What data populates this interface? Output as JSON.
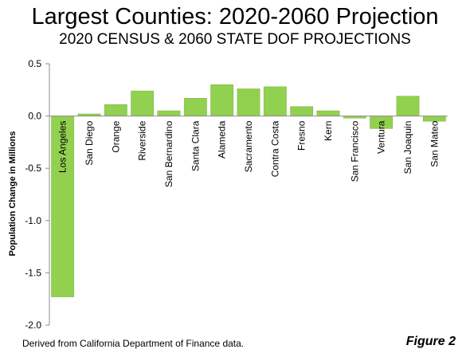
{
  "header": {
    "title": "Largest Counties: 2020-2060 Projection",
    "subtitle": "2020 CENSUS & 2060 STATE DOF PROJECTIONS"
  },
  "footer": {
    "source": "Derived from California Department of Finance data.",
    "figure_label": "Figure 2"
  },
  "colors": {
    "bar": "#92d050",
    "bar_stroke": "#7ab63c",
    "axis": "#8c8c8c",
    "text": "#000000"
  },
  "chart_data": {
    "type": "bar",
    "title": "Largest Counties: 2020-2060 Projection",
    "subtitle": "2020 CENSUS & 2060 STATE DOF PROJECTIONS",
    "xlabel": "",
    "ylabel": "Population Change in Millions",
    "ylim": [
      -2.0,
      0.5
    ],
    "yticks": [
      0.5,
      0.0,
      -0.5,
      -1.0,
      -1.5,
      -2.0
    ],
    "ytick_labels": [
      "0.5",
      "0.0",
      "-0.5",
      "-1.0",
      "-1.5",
      "-2.0"
    ],
    "grid": false,
    "legend": "none",
    "categories": [
      "Los Angeles",
      "San Diego",
      "Orange",
      "Riverside",
      "San Bernardino",
      "Santa Clara",
      "Alameda",
      "Sacramento",
      "Contra Costa",
      "Fresno",
      "Kern",
      "San Francisco",
      "Ventura",
      "San Joaquin",
      "San Mateo"
    ],
    "values": [
      -1.73,
      0.02,
      0.11,
      0.24,
      0.05,
      0.17,
      0.3,
      0.26,
      0.28,
      0.09,
      0.05,
      -0.02,
      -0.12,
      0.19,
      -0.05
    ]
  }
}
